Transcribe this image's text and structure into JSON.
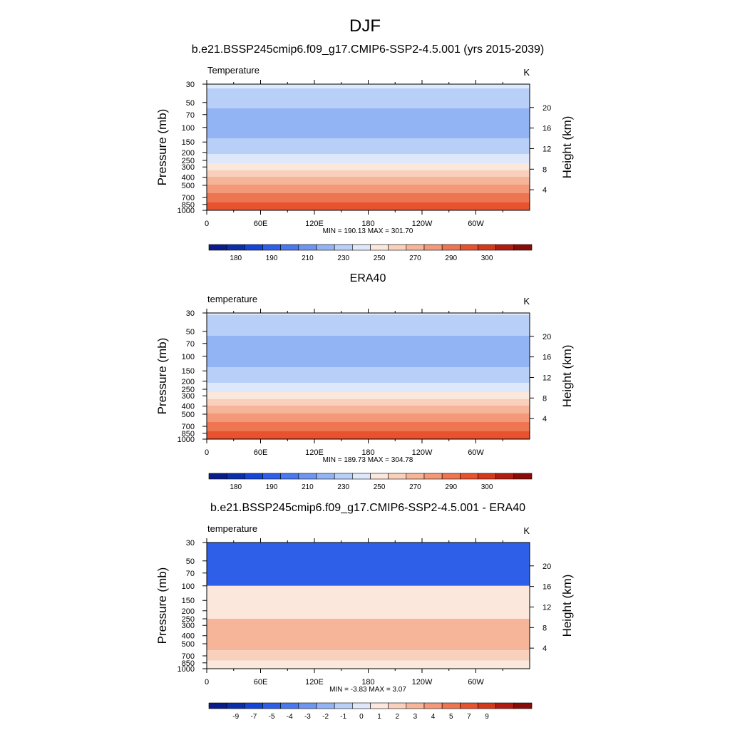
{
  "title": "DJF",
  "colors": {
    "temp_fill": [
      "#0a1c8a",
      "#0b2fa8",
      "#1545d8",
      "#2e5fe8",
      "#4a78ee",
      "#6e95f0",
      "#93b4f4",
      "#b8d0f8",
      "#dde9fb",
      "#fbe7dc",
      "#f9d0bc",
      "#f6b498",
      "#f39878",
      "#ee7552",
      "#e8522e",
      "#d4391c",
      "#b21c10",
      "#8a0c08"
    ],
    "diff_fill": [
      "#0a1c8a",
      "#0b2fa8",
      "#1545d8",
      "#2e5fe8",
      "#4a78ee",
      "#6e95f0",
      "#93b4f4",
      "#b8d0f8",
      "#dde9fb",
      "#fbe7dc",
      "#f9d0bc",
      "#f6b498",
      "#f39878",
      "#ee7552",
      "#e8522e",
      "#d4391c",
      "#b21c10",
      "#8a0c08"
    ],
    "topography": "#000000"
  },
  "chart_data": [
    {
      "type": "heatmap",
      "title": "b.e21.BSSP245cmip6.f09_g17.CMIP6-SSP2-4.5.001 (yrs 2015-2039)",
      "left_label": "Temperature",
      "units": "K",
      "ylabel": "Pressure (mb)",
      "ylabel_right": "Height (km)",
      "x_ticks": [
        "0",
        "60E",
        "120E",
        "180",
        "120W",
        "60W"
      ],
      "x_tick_lon": [
        0,
        60,
        120,
        180,
        240,
        300
      ],
      "y_ticks": [
        "30",
        "50",
        "70",
        "100",
        "150",
        "200",
        "250",
        "300",
        "400",
        "500",
        "700",
        "850",
        "1000"
      ],
      "y_tick_mb": [
        30,
        50,
        70,
        100,
        150,
        200,
        250,
        300,
        400,
        500,
        700,
        850,
        1000
      ],
      "height_ticks": [
        "4",
        "8",
        "12",
        "16",
        "20"
      ],
      "height_tick_km": [
        4,
        8,
        12,
        16,
        20
      ],
      "pressure_range_mb": [
        30,
        1000
      ],
      "min_max": "MIN = 190.13  MAX = 301.70",
      "levels": [
        "180",
        "190",
        "210",
        "230",
        "250",
        "270",
        "290",
        "300"
      ],
      "profile_mb": [
        30,
        50,
        70,
        100,
        150,
        200,
        250,
        300,
        400,
        500,
        700,
        850,
        1000
      ],
      "profile_K": [
        222,
        213,
        206,
        205,
        212,
        219,
        227,
        236,
        251,
        261,
        275,
        282,
        290
      ],
      "topography": true
    },
    {
      "type": "heatmap",
      "title": "ERA40",
      "left_label": "temperature",
      "units": "K",
      "ylabel": "Pressure (mb)",
      "ylabel_right": "Height (km)",
      "x_ticks": [
        "0",
        "60E",
        "120E",
        "180",
        "120W",
        "60W"
      ],
      "x_tick_lon": [
        0,
        60,
        120,
        180,
        240,
        300
      ],
      "y_ticks": [
        "30",
        "50",
        "70",
        "100",
        "150",
        "200",
        "250",
        "300",
        "400",
        "500",
        "700",
        "850",
        "1000"
      ],
      "y_tick_mb": [
        30,
        50,
        70,
        100,
        150,
        200,
        250,
        300,
        400,
        500,
        700,
        850,
        1000
      ],
      "height_ticks": [
        "4",
        "8",
        "12",
        "16",
        "20"
      ],
      "height_tick_km": [
        4,
        8,
        12,
        16,
        20
      ],
      "pressure_range_mb": [
        30,
        1000
      ],
      "min_max": "MIN = 189.73  MAX = 304.78",
      "levels": [
        "180",
        "190",
        "210",
        "230",
        "250",
        "270",
        "290",
        "300"
      ],
      "profile_mb": [
        30,
        50,
        70,
        100,
        150,
        200,
        250,
        300,
        400,
        500,
        700,
        850,
        1000
      ],
      "profile_K": [
        221,
        212,
        206,
        205,
        212,
        219,
        227,
        236,
        251,
        261,
        275,
        283,
        291
      ],
      "topography": false
    },
    {
      "type": "heatmap",
      "title": "b.e21.BSSP245cmip6.f09_g17.CMIP6-SSP2-4.5.001 - ERA40",
      "left_label": "temperature",
      "units": "K",
      "ylabel": "Pressure (mb)",
      "ylabel_right": "Height (km)",
      "x_ticks": [
        "0",
        "60E",
        "120E",
        "180",
        "120W",
        "60W"
      ],
      "x_tick_lon": [
        0,
        60,
        120,
        180,
        240,
        300
      ],
      "y_ticks": [
        "30",
        "50",
        "70",
        "100",
        "150",
        "200",
        "250",
        "300",
        "400",
        "500",
        "700",
        "850",
        "1000"
      ],
      "y_tick_mb": [
        30,
        50,
        70,
        100,
        150,
        200,
        250,
        300,
        400,
        500,
        700,
        850,
        1000
      ],
      "height_ticks": [
        "4",
        "8",
        "12",
        "16",
        "20"
      ],
      "height_tick_km": [
        4,
        8,
        12,
        16,
        20
      ],
      "pressure_range_mb": [
        30,
        1000
      ],
      "min_max": "MIN = -3.83  MAX =  3.07",
      "levels": [
        "-9",
        "-7",
        "-5",
        "-4",
        "-3",
        "-2",
        "-1",
        "0",
        "1",
        "2",
        "3",
        "4",
        "5",
        "7",
        "9"
      ],
      "bands": [
        {
          "from_mb": 30,
          "to_mb": 100,
          "color_index": 3
        },
        {
          "from_mb": 100,
          "to_mb": 250,
          "color_index": 9
        },
        {
          "from_mb": 250,
          "to_mb": 600,
          "color_index": 11
        },
        {
          "from_mb": 600,
          "to_mb": 800,
          "color_index": 10
        },
        {
          "from_mb": 800,
          "to_mb": 1000,
          "color_index": 9
        }
      ],
      "topography": true
    }
  ]
}
